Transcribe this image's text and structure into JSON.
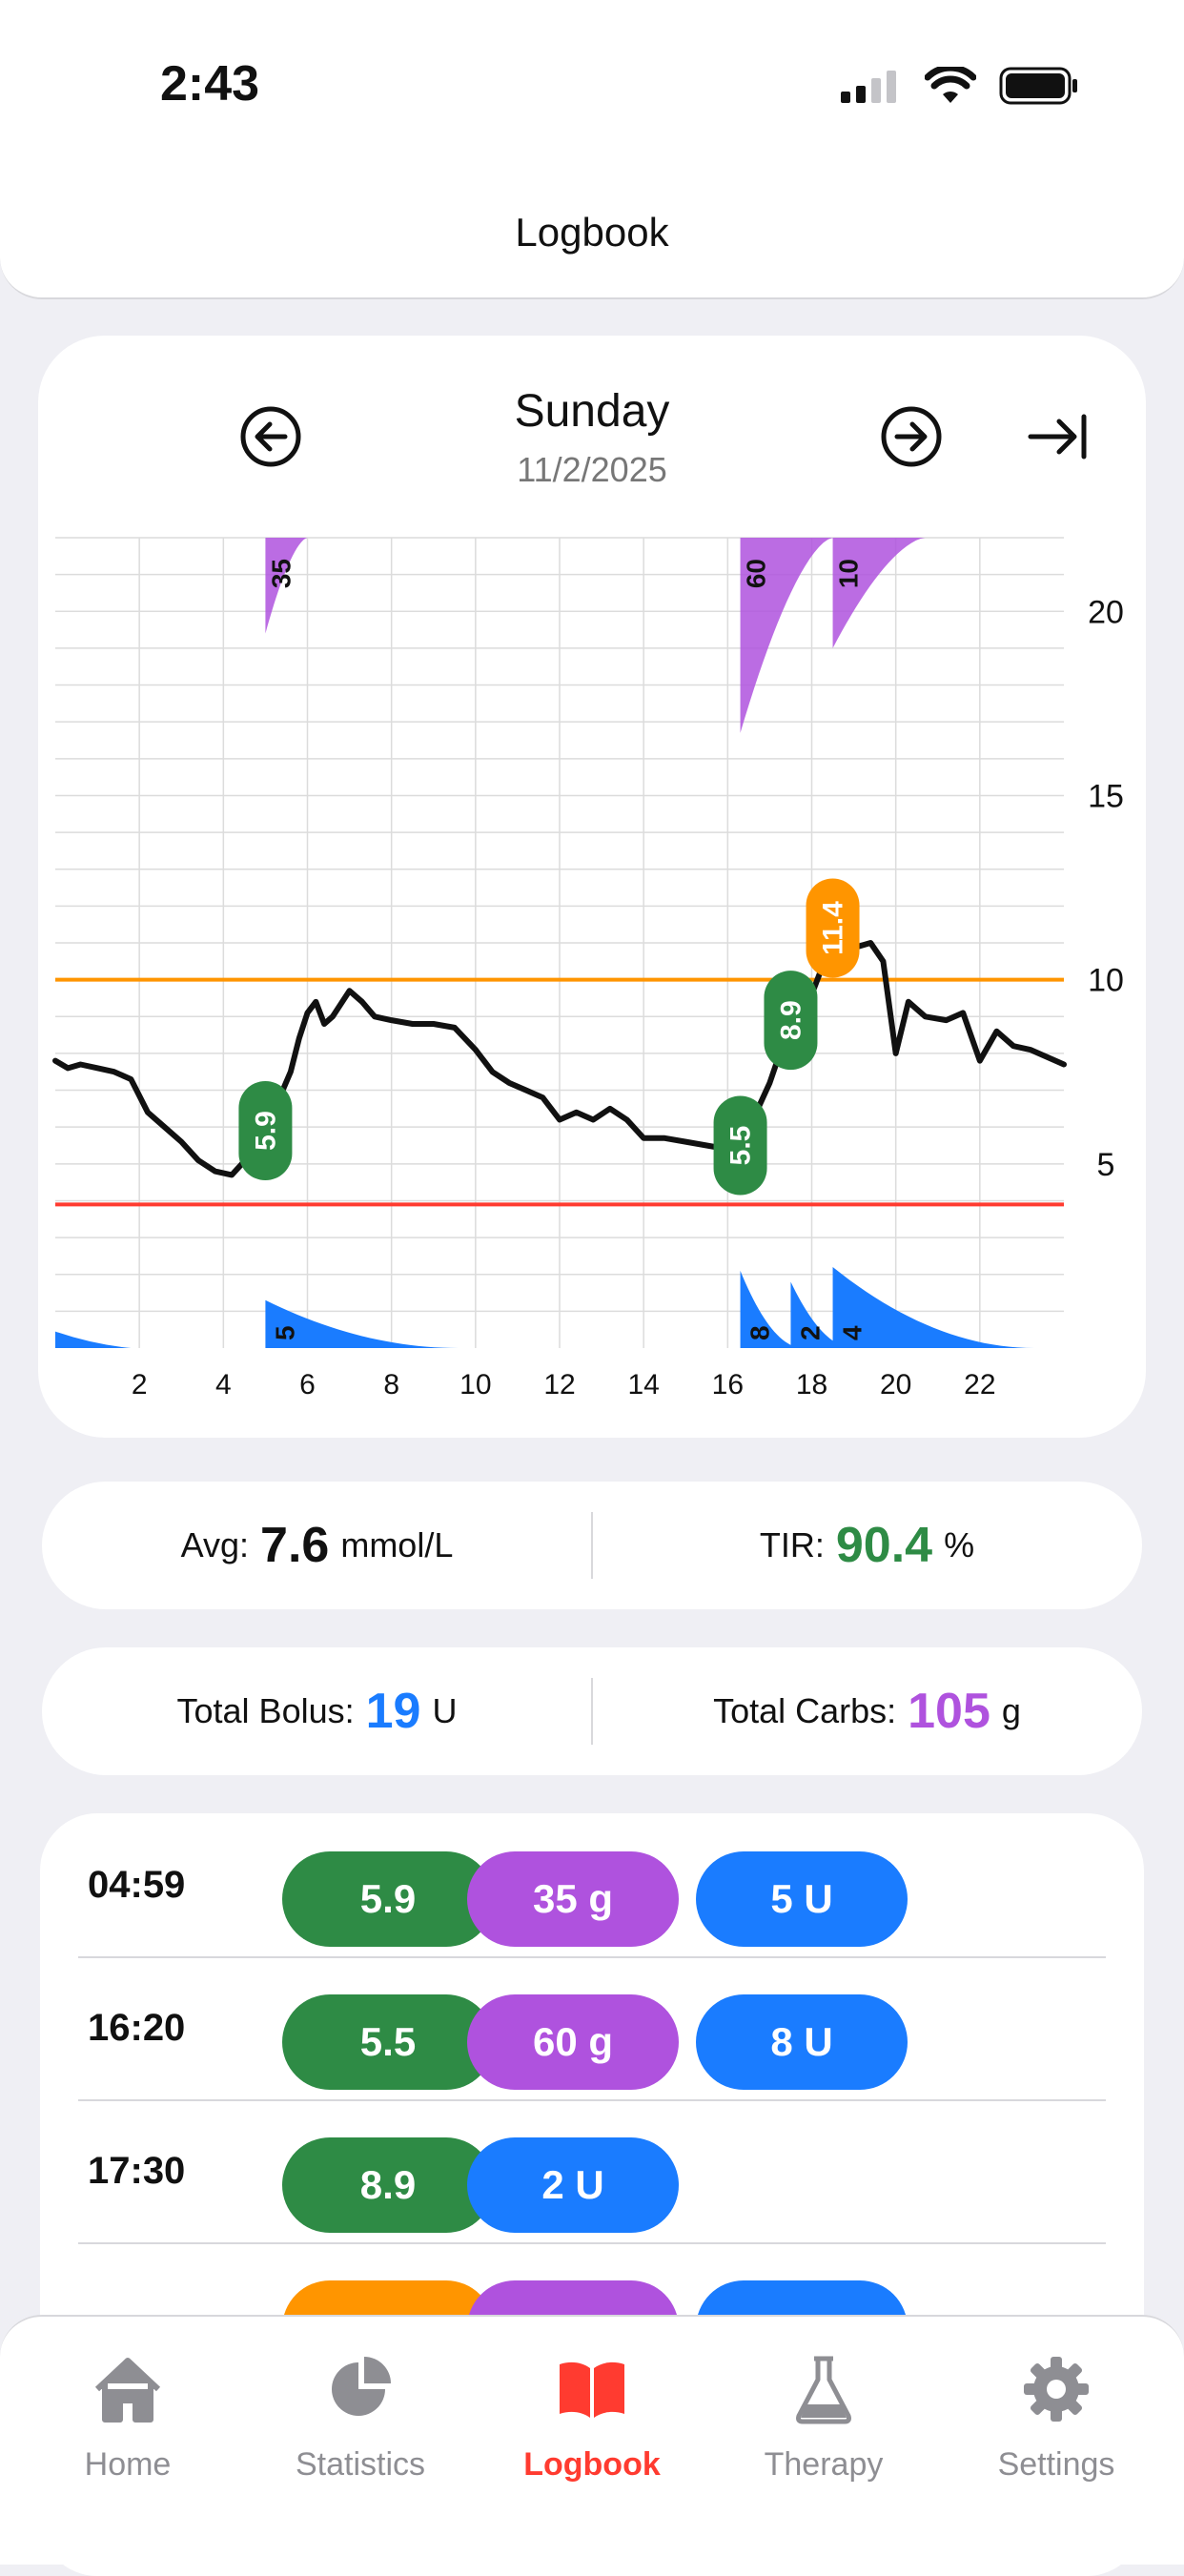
{
  "status_bar": {
    "time": "2:43"
  },
  "nav": {
    "title": "Logbook"
  },
  "header": {
    "day": "Sunday",
    "date": "11/2/2025"
  },
  "colors": {
    "glucose_in_range": "#2e8b45",
    "glucose_high": "#ff9500",
    "carbs": "#af52de",
    "bolus": "#1a7cff",
    "high_line": "#ff9500",
    "low_line": "#ff3b30",
    "active_tab": "#ff3b30",
    "inactive_tab": "#8e8e93"
  },
  "chart_data": {
    "type": "line",
    "x_range": [
      0,
      24
    ],
    "y_range": [
      0,
      22
    ],
    "x_ticks": [
      "2",
      "4",
      "6",
      "8",
      "10",
      "12",
      "14",
      "16",
      "18",
      "20",
      "22"
    ],
    "y_ticks": [
      "5",
      "10",
      "15",
      "20"
    ],
    "high_threshold": 10,
    "low_threshold": 3.9,
    "glucose": [
      [
        0,
        7.8
      ],
      [
        0.3,
        7.6
      ],
      [
        0.6,
        7.7
      ],
      [
        1,
        7.6
      ],
      [
        1.4,
        7.5
      ],
      [
        1.8,
        7.3
      ],
      [
        2.2,
        6.4
      ],
      [
        2.6,
        6.0
      ],
      [
        3,
        5.6
      ],
      [
        3.4,
        5.1
      ],
      [
        3.8,
        4.8
      ],
      [
        4.2,
        4.7
      ],
      [
        4.6,
        5.2
      ],
      [
        5,
        6.1
      ],
      [
        5.3,
        6.7
      ],
      [
        5.6,
        7.5
      ],
      [
        5.8,
        8.4
      ],
      [
        6,
        9.1
      ],
      [
        6.2,
        9.4
      ],
      [
        6.4,
        8.8
      ],
      [
        6.6,
        9.0
      ],
      [
        7,
        9.7
      ],
      [
        7.3,
        9.4
      ],
      [
        7.6,
        9.0
      ],
      [
        8,
        8.9
      ],
      [
        8.5,
        8.8
      ],
      [
        9,
        8.8
      ],
      [
        9.5,
        8.7
      ],
      [
        10,
        8.1
      ],
      [
        10.4,
        7.5
      ],
      [
        10.8,
        7.2
      ],
      [
        11.2,
        7.0
      ],
      [
        11.6,
        6.8
      ],
      [
        12,
        6.2
      ],
      [
        12.4,
        6.4
      ],
      [
        12.8,
        6.2
      ],
      [
        13.2,
        6.5
      ],
      [
        13.6,
        6.2
      ],
      [
        14,
        5.7
      ],
      [
        14.5,
        5.7
      ],
      [
        15,
        5.6
      ],
      [
        15.5,
        5.5
      ],
      [
        16,
        5.4
      ],
      [
        16.3,
        5.6
      ],
      [
        16.6,
        6.2
      ],
      [
        17,
        7.2
      ],
      [
        17.3,
        8.2
      ],
      [
        17.6,
        8.9
      ],
      [
        18,
        9.6
      ],
      [
        18.4,
        10.8
      ],
      [
        18.8,
        11.4
      ],
      [
        19.1,
        10.9
      ],
      [
        19.4,
        11.0
      ],
      [
        19.7,
        10.5
      ],
      [
        20,
        8.0
      ],
      [
        20.3,
        9.4
      ],
      [
        20.7,
        9.0
      ],
      [
        21.2,
        8.9
      ],
      [
        21.6,
        9.1
      ],
      [
        22,
        7.8
      ],
      [
        22.4,
        8.6
      ],
      [
        22.8,
        8.2
      ],
      [
        23.2,
        8.1
      ],
      [
        23.6,
        7.9
      ],
      [
        24,
        7.7
      ]
    ],
    "glucose_labels": [
      {
        "t": 5.0,
        "value": "5.9",
        "kind": "in_range"
      },
      {
        "t": 16.3,
        "value": "5.5",
        "kind": "in_range"
      },
      {
        "t": 17.5,
        "value": "8.9",
        "kind": "in_range"
      },
      {
        "t": 18.5,
        "value": "11.4",
        "kind": "high"
      }
    ],
    "carbs": [
      {
        "t": 5.0,
        "grams": "35"
      },
      {
        "t": 16.3,
        "grams": "60"
      },
      {
        "t": 18.5,
        "grams": "10"
      }
    ],
    "bolus": [
      {
        "t": 5.0,
        "units": "5"
      },
      {
        "t": 16.3,
        "units": "8"
      },
      {
        "t": 17.5,
        "units": "2"
      },
      {
        "t": 18.5,
        "units": "4"
      }
    ]
  },
  "summary": {
    "avg_label": "Avg:",
    "avg_value": "7.6",
    "avg_unit": "mmol/L",
    "tir_label": "TIR:",
    "tir_value": "90.4",
    "tir_unit": "%",
    "bolus_label": "Total Bolus:",
    "bolus_value": "19",
    "bolus_unit": "U",
    "carbs_label": "Total Carbs:",
    "carbs_value": "105",
    "carbs_unit": "g"
  },
  "log_entries": [
    {
      "time": "04:59",
      "glucose": "5.9",
      "carbs": "35 g",
      "bolus": "5 U"
    },
    {
      "time": "16:20",
      "glucose": "5.5",
      "carbs": "60 g",
      "bolus": "8 U"
    },
    {
      "time": "17:30",
      "glucose": "8.9",
      "bolus": "2 U"
    }
  ],
  "tabs": [
    {
      "label": "Home",
      "icon": "house-icon"
    },
    {
      "label": "Statistics",
      "icon": "pie-chart-icon"
    },
    {
      "label": "Logbook",
      "icon": "book-icon",
      "active": true
    },
    {
      "label": "Therapy",
      "icon": "flask-icon"
    },
    {
      "label": "Settings",
      "icon": "gear-icon"
    }
  ]
}
